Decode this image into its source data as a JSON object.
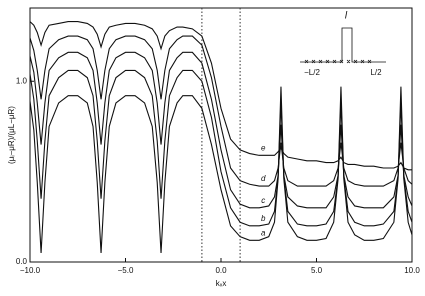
{
  "chart_data": {
    "type": "line",
    "xlabel": "kₓx",
    "ylabel": "(μᵢ−μR)/(μL−μR)",
    "x": [
      -10,
      -9.8,
      -9.62,
      -9.42,
      -9.22,
      -9.0,
      -8.5,
      -8,
      -7.5,
      -7,
      -6.7,
      -6.48,
      -6.28,
      -6.08,
      -5.85,
      -5.5,
      -5,
      -4.5,
      -4,
      -3.6,
      -3.34,
      -3.14,
      -2.94,
      -2.7,
      -2.3,
      -2,
      -1.5,
      -1,
      -0.5,
      0,
      0.5,
      1,
      1.5,
      2,
      2.5,
      2.8,
      2.99,
      3.14,
      3.29,
      3.5,
      4,
      4.5,
      5,
      5.5,
      5.9,
      6.13,
      6.28,
      6.43,
      6.65,
      7,
      7.5,
      8,
      8.5,
      9.05,
      9.27,
      9.42,
      9.57,
      9.8,
      10
    ],
    "series": [
      {
        "name": "a",
        "color": "#111111",
        "values": [
          0.89,
          0.73,
          0.44,
          0.05,
          0.44,
          0.75,
          0.88,
          0.92,
          0.92,
          0.88,
          0.75,
          0.44,
          0.05,
          0.44,
          0.75,
          0.88,
          0.92,
          0.92,
          0.88,
          0.75,
          0.44,
          0.05,
          0.44,
          0.75,
          0.88,
          0.92,
          0.92,
          0.85,
          0.65,
          0.4,
          0.2,
          0.14,
          0.12,
          0.12,
          0.14,
          0.22,
          0.46,
          0.97,
          0.46,
          0.22,
          0.14,
          0.12,
          0.12,
          0.13,
          0.22,
          0.46,
          0.97,
          0.46,
          0.22,
          0.15,
          0.12,
          0.12,
          0.13,
          0.22,
          0.46,
          0.97,
          0.46,
          0.22,
          0.15
        ]
      },
      {
        "name": "b",
        "color": "#111111",
        "values": [
          1.04,
          0.9,
          0.67,
          0.35,
          0.67,
          0.92,
          1.02,
          1.06,
          1.06,
          1.02,
          0.92,
          0.67,
          0.35,
          0.67,
          0.92,
          1.02,
          1.06,
          1.06,
          1.02,
          0.92,
          0.67,
          0.35,
          0.67,
          0.92,
          1.02,
          1.06,
          1.06,
          1.0,
          0.8,
          0.5,
          0.3,
          0.22,
          0.2,
          0.2,
          0.21,
          0.28,
          0.47,
          0.88,
          0.47,
          0.28,
          0.21,
          0.2,
          0.2,
          0.21,
          0.28,
          0.47,
          0.88,
          0.47,
          0.28,
          0.22,
          0.2,
          0.2,
          0.21,
          0.28,
          0.47,
          0.88,
          0.47,
          0.28,
          0.22
        ]
      },
      {
        "name": "c",
        "color": "#111111",
        "values": [
          1.14,
          1.05,
          0.88,
          0.65,
          0.88,
          1.06,
          1.13,
          1.16,
          1.16,
          1.13,
          1.06,
          0.88,
          0.65,
          0.88,
          1.06,
          1.13,
          1.16,
          1.16,
          1.13,
          1.06,
          0.88,
          0.65,
          0.88,
          1.06,
          1.13,
          1.16,
          1.16,
          1.1,
          0.9,
          0.62,
          0.4,
          0.32,
          0.3,
          0.3,
          0.31,
          0.36,
          0.48,
          0.76,
          0.48,
          0.36,
          0.31,
          0.3,
          0.3,
          0.3,
          0.36,
          0.48,
          0.76,
          0.48,
          0.36,
          0.31,
          0.3,
          0.3,
          0.3,
          0.36,
          0.48,
          0.76,
          0.48,
          0.36,
          0.31
        ]
      },
      {
        "name": "d",
        "color": "#111111",
        "values": [
          1.24,
          1.17,
          1.06,
          0.9,
          1.06,
          1.18,
          1.23,
          1.25,
          1.25,
          1.23,
          1.18,
          1.06,
          0.9,
          1.06,
          1.18,
          1.23,
          1.25,
          1.25,
          1.23,
          1.18,
          1.06,
          0.9,
          1.06,
          1.18,
          1.23,
          1.25,
          1.25,
          1.2,
          1.02,
          0.75,
          0.52,
          0.45,
          0.43,
          0.42,
          0.42,
          0.45,
          0.52,
          0.66,
          0.52,
          0.45,
          0.42,
          0.42,
          0.42,
          0.42,
          0.45,
          0.52,
          0.66,
          0.52,
          0.45,
          0.43,
          0.42,
          0.42,
          0.42,
          0.45,
          0.52,
          0.66,
          0.52,
          0.45,
          0.43
        ]
      },
      {
        "name": "e",
        "color": "#111111",
        "values": [
          1.33,
          1.31,
          1.27,
          1.2,
          1.27,
          1.31,
          1.32,
          1.33,
          1.33,
          1.32,
          1.3,
          1.26,
          1.19,
          1.26,
          1.3,
          1.31,
          1.32,
          1.32,
          1.31,
          1.29,
          1.25,
          1.18,
          1.25,
          1.28,
          1.3,
          1.3,
          1.29,
          1.25,
          1.1,
          0.85,
          0.68,
          0.62,
          0.6,
          0.59,
          0.59,
          0.59,
          0.61,
          0.63,
          0.6,
          0.58,
          0.57,
          0.56,
          0.56,
          0.55,
          0.55,
          0.56,
          0.58,
          0.55,
          0.54,
          0.54,
          0.53,
          0.53,
          0.52,
          0.52,
          0.53,
          0.55,
          0.52,
          0.51,
          0.51
        ]
      }
    ],
    "xlim": [
      -10,
      10
    ],
    "ylim": [
      0,
      1.35
    ],
    "xticks": [
      {
        "value": -10,
        "label": "−10.0"
      },
      {
        "value": -5,
        "label": "−5.0"
      },
      {
        "value": 0,
        "label": "0.0"
      },
      {
        "value": 5,
        "label": "5.0"
      },
      {
        "value": 10,
        "label": "10.0"
      }
    ],
    "yticks": [
      {
        "value": 0,
        "label": "0.0"
      },
      {
        "value": 1,
        "label": "1.0"
      }
    ],
    "vlines": [
      -1,
      1
    ],
    "inset_labels": [
      "l",
      "−L/2",
      "L/2"
    ]
  }
}
